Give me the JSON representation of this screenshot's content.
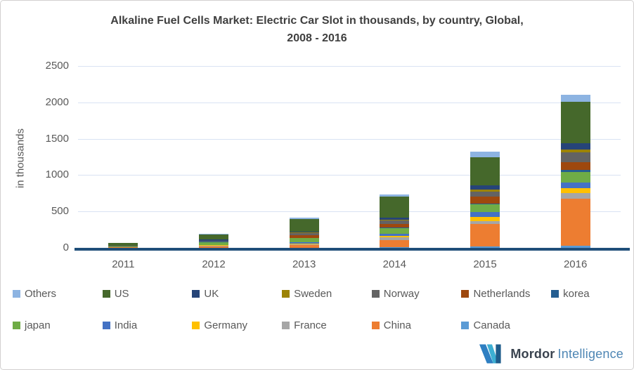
{
  "title": {
    "line1": "Alkaline Fuel Cells Market: Electric Car Slot in thousands, by country, Global,",
    "line2": "2008 - 2016"
  },
  "y_axis": {
    "title": "in thousands",
    "ticks": [
      0,
      500,
      1000,
      1500,
      2000,
      2500
    ]
  },
  "chart_data": {
    "type": "bar",
    "stacked": true,
    "title": "Alkaline Fuel Cells Market: Electric Car Slot in thousands, by country, Global, 2008 - 2016",
    "xlabel": "",
    "ylabel": "in thousands",
    "ylim": [
      0,
      2500
    ],
    "grid": "horizontal",
    "legend_position": "bottom",
    "categories": [
      "2011",
      "2012",
      "2013",
      "2014",
      "2015",
      "2016"
    ],
    "series": [
      {
        "name": "Others",
        "color": "#8db4e2",
        "values": [
          8,
          10,
          20,
          25,
          75,
          100
        ]
      },
      {
        "name": "US",
        "color": "#45682b",
        "values": [
          35,
          75,
          165,
          290,
          385,
          570
        ]
      },
      {
        "name": "UK",
        "color": "#264478",
        "values": [
          2,
          15,
          17,
          28,
          55,
          85
        ]
      },
      {
        "name": "Sweden",
        "color": "#9c8305",
        "values": [
          2,
          4,
          10,
          15,
          30,
          38
        ]
      },
      {
        "name": "Norway",
        "color": "#636363",
        "values": [
          2,
          5,
          27,
          45,
          68,
          135
        ]
      },
      {
        "name": "Netherlands",
        "color": "#9e480e",
        "values": [
          2,
          6,
          37,
          48,
          95,
          108
        ]
      },
      {
        "name": "korea",
        "color": "#255e91",
        "values": [
          1,
          2,
          5,
          8,
          15,
          25
        ]
      },
      {
        "name": "japan",
        "color": "#6fac46",
        "values": [
          8,
          38,
          55,
          78,
          105,
          145
        ]
      },
      {
        "name": "India",
        "color": "#4472c4",
        "values": [
          2,
          5,
          15,
          28,
          68,
          75
        ]
      },
      {
        "name": "Germany",
        "color": "#ffc000",
        "values": [
          3,
          12,
          10,
          20,
          55,
          68
        ]
      },
      {
        "name": "France",
        "color": "#a6a6a6",
        "values": [
          2,
          4,
          12,
          45,
          40,
          78
        ]
      },
      {
        "name": "China",
        "color": "#ed7d31",
        "values": [
          5,
          20,
          35,
          95,
          310,
          650
        ]
      },
      {
        "name": "Canada",
        "color": "#5b9bd5",
        "values": [
          1,
          2,
          4,
          8,
          18,
          28
        ]
      }
    ],
    "stack_order": "reverse-of-legend (Canada at bottom, Others on top)",
    "axis_color": "#1f4e79",
    "gridline_color": "#d9e2f3"
  },
  "legend": {
    "rows": [
      [
        "Others",
        "US",
        "UK",
        "Sweden",
        "Norway",
        "Netherlands",
        "korea"
      ],
      [
        "japan",
        "India",
        "Germany",
        "France",
        "China",
        "Canada"
      ]
    ]
  },
  "logo": {
    "name_bold": "Mordor",
    "name_light": "Intelligence",
    "mark_colors": [
      "#2e7fc2",
      "#3dafd3",
      "#1f5c8b"
    ]
  }
}
